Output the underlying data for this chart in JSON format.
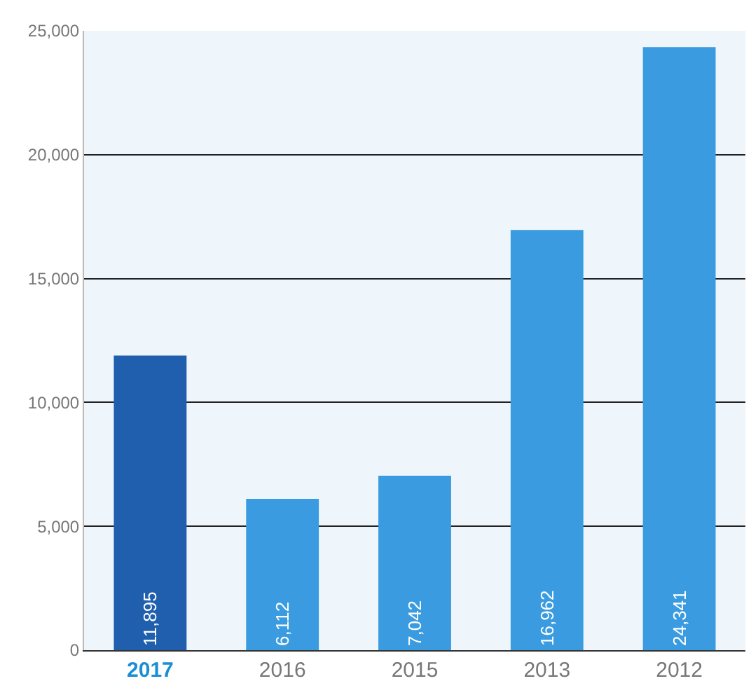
{
  "chart_data": {
    "type": "bar",
    "categories": [
      "2017",
      "2016",
      "2015",
      "2013",
      "2012"
    ],
    "values": [
      11895,
      6112,
      7042,
      16962,
      24341
    ],
    "colors": [
      "#1f5fae",
      "#3a9be0",
      "#3a9be0",
      "#3a9be0",
      "#3a9be0"
    ],
    "value_labels": [
      "11,895",
      "6,112",
      "7,042",
      "16,962",
      "24,341"
    ],
    "ylim": [
      0,
      25000
    ],
    "yticks": [
      0,
      {
        "value": 5000,
        "label": "5,000"
      },
      {
        "value": 10000,
        "label": "10,000"
      },
      {
        "value": 15000,
        "label": "15,000"
      },
      {
        "value": 20000,
        "label": "20,000"
      },
      {
        "value": 25000,
        "label": "25,000"
      }
    ],
    "grid": "y",
    "legend": false
  }
}
